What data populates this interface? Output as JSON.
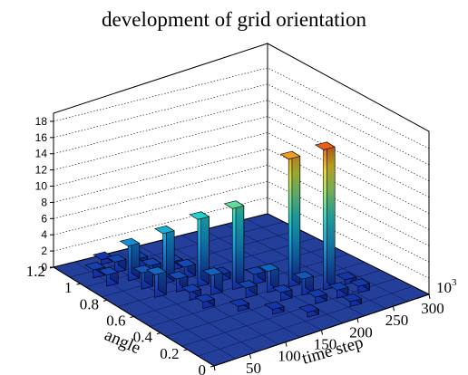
{
  "chart_data": {
    "type": "bar3d",
    "title": "development of grid orientation",
    "xlabel": "time step",
    "ylabel": "angle",
    "zlabel": "",
    "x_axis_exponent": "10",
    "x_axis_exponent_power": "3",
    "xlim": [
      0,
      300
    ],
    "ylim": [
      0,
      1.2
    ],
    "zlim": [
      0,
      19
    ],
    "x_ticks": [
      0,
      50,
      100,
      150,
      200,
      250,
      300
    ],
    "x_tick_labels": [
      "0",
      "50",
      "100",
      "150",
      "200",
      "250",
      "300"
    ],
    "y_ticks": [
      0,
      0.2,
      0.4,
      0.6,
      0.8,
      1,
      1.2
    ],
    "y_tick_labels": [
      "0",
      "0.2",
      "0.4",
      "0.6",
      "0.8",
      "1",
      "1.2"
    ],
    "z_ticks": [
      0,
      2,
      4,
      6,
      8,
      10,
      12,
      14,
      16,
      18
    ],
    "z_tick_labels": [
      "0",
      "2",
      "4",
      "6",
      "8",
      "10",
      "12",
      "14",
      "16",
      "18"
    ],
    "grid": true,
    "palette": "rainbow",
    "bars": [
      {
        "x": 60,
        "y": 1.15,
        "z": 0.6
      },
      {
        "x": 30,
        "y": 1.05,
        "z": 1.0
      },
      {
        "x": 60,
        "y": 1.05,
        "z": 1.3
      },
      {
        "x": 90,
        "y": 1.05,
        "z": 1.0
      },
      {
        "x": 30,
        "y": 0.95,
        "z": 1.4
      },
      {
        "x": 60,
        "y": 0.95,
        "z": 4.3
      },
      {
        "x": 90,
        "y": 0.95,
        "z": 1.2
      },
      {
        "x": 120,
        "y": 0.95,
        "z": 1.0
      },
      {
        "x": 60,
        "y": 0.85,
        "z": 2.0
      },
      {
        "x": 90,
        "y": 0.85,
        "z": 6.2
      },
      {
        "x": 120,
        "y": 0.85,
        "z": 1.4
      },
      {
        "x": 60,
        "y": 0.75,
        "z": 2.8
      },
      {
        "x": 90,
        "y": 0.75,
        "z": 1.6
      },
      {
        "x": 120,
        "y": 0.75,
        "z": 8.3
      },
      {
        "x": 150,
        "y": 0.75,
        "z": 0.8
      },
      {
        "x": 90,
        "y": 0.65,
        "z": 1.0
      },
      {
        "x": 120,
        "y": 0.65,
        "z": 2.4
      },
      {
        "x": 150,
        "y": 0.65,
        "z": 10.0
      },
      {
        "x": 180,
        "y": 0.65,
        "z": 1.2
      },
      {
        "x": 90,
        "y": 0.55,
        "z": 0.8
      },
      {
        "x": 150,
        "y": 0.55,
        "z": 1.2
      },
      {
        "x": 180,
        "y": 0.55,
        "z": 2.6
      },
      {
        "x": 210,
        "y": 0.55,
        "z": 15.8
      },
      {
        "x": 120,
        "y": 0.45,
        "z": 0.6
      },
      {
        "x": 180,
        "y": 0.45,
        "z": 1.0
      },
      {
        "x": 210,
        "y": 0.45,
        "z": 2.0
      },
      {
        "x": 240,
        "y": 0.45,
        "z": 17.3
      },
      {
        "x": 270,
        "y": 0.45,
        "z": 0.6
      },
      {
        "x": 150,
        "y": 0.35,
        "z": 0.6
      },
      {
        "x": 210,
        "y": 0.35,
        "z": 0.8
      },
      {
        "x": 240,
        "y": 0.35,
        "z": 1.0
      },
      {
        "x": 270,
        "y": 0.35,
        "z": 0.8
      },
      {
        "x": 180,
        "y": 0.25,
        "z": 0.6
      },
      {
        "x": 240,
        "y": 0.25,
        "z": 0.6
      }
    ]
  }
}
